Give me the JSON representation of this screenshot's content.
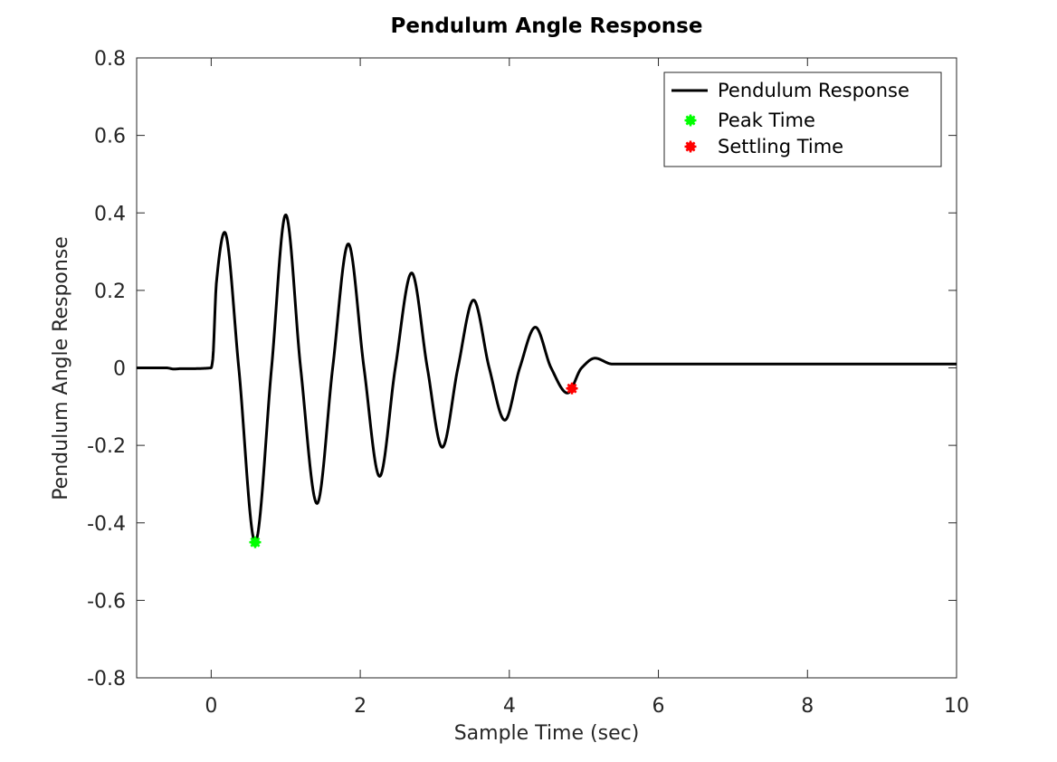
{
  "chart_data": {
    "type": "line",
    "title": "Pendulum Angle Response",
    "xlabel": "Sample Time (sec)",
    "ylabel": "Pendulum Angle Response",
    "xlim": [
      -1,
      10
    ],
    "ylim": [
      -0.8,
      0.8
    ],
    "xticks": [
      0,
      2,
      4,
      6,
      8,
      10
    ],
    "xtick_labels": [
      "0",
      "2",
      "4",
      "6",
      "8",
      "10"
    ],
    "yticks": [
      -0.8,
      -0.6,
      -0.4,
      -0.2,
      0,
      0.2,
      0.4,
      0.6,
      0.8
    ],
    "ytick_labels": [
      "-0.8",
      "-0.6",
      "-0.4",
      "-0.2",
      "0",
      "0.2",
      "0.4",
      "0.6",
      "0.8"
    ],
    "grid": false,
    "legend_position": "top-right",
    "series": [
      {
        "name": "Pendulum Response",
        "color": "#000000",
        "points": [
          [
            -1.0,
            0.0
          ],
          [
            -0.6,
            0.0
          ],
          [
            -0.5,
            -0.003
          ],
          [
            -0.4,
            -0.002
          ],
          [
            -0.3,
            -0.002
          ],
          [
            0.0,
            0.0
          ],
          [
            0.02,
            0.02
          ],
          [
            0.07,
            0.22
          ],
          [
            0.18,
            0.35
          ],
          [
            0.37,
            0.0
          ],
          [
            0.59,
            -0.45
          ],
          [
            0.81,
            0.0
          ],
          [
            1.0,
            0.395
          ],
          [
            1.2,
            0.0
          ],
          [
            1.42,
            -0.35
          ],
          [
            1.63,
            0.0
          ],
          [
            1.84,
            0.32
          ],
          [
            2.05,
            0.0
          ],
          [
            2.26,
            -0.28
          ],
          [
            2.47,
            0.0
          ],
          [
            2.69,
            0.245
          ],
          [
            2.9,
            0.0
          ],
          [
            3.1,
            -0.205
          ],
          [
            3.31,
            0.0
          ],
          [
            3.52,
            0.175
          ],
          [
            3.73,
            0.0
          ],
          [
            3.94,
            -0.135
          ],
          [
            4.14,
            0.0
          ],
          [
            4.35,
            0.105
          ],
          [
            4.56,
            0.0
          ],
          [
            4.78,
            -0.065
          ],
          [
            4.97,
            0.0
          ],
          [
            5.15,
            0.025
          ],
          [
            5.38,
            0.01
          ],
          [
            6.0,
            0.01
          ],
          [
            10.0,
            0.01
          ]
        ]
      }
    ],
    "markers": [
      {
        "name": "Peak Time",
        "x": 0.59,
        "y": -0.45,
        "color": "#00ff00"
      },
      {
        "name": "Settling Time",
        "x": 4.84,
        "y": -0.053,
        "color": "#ff0000"
      }
    ]
  }
}
